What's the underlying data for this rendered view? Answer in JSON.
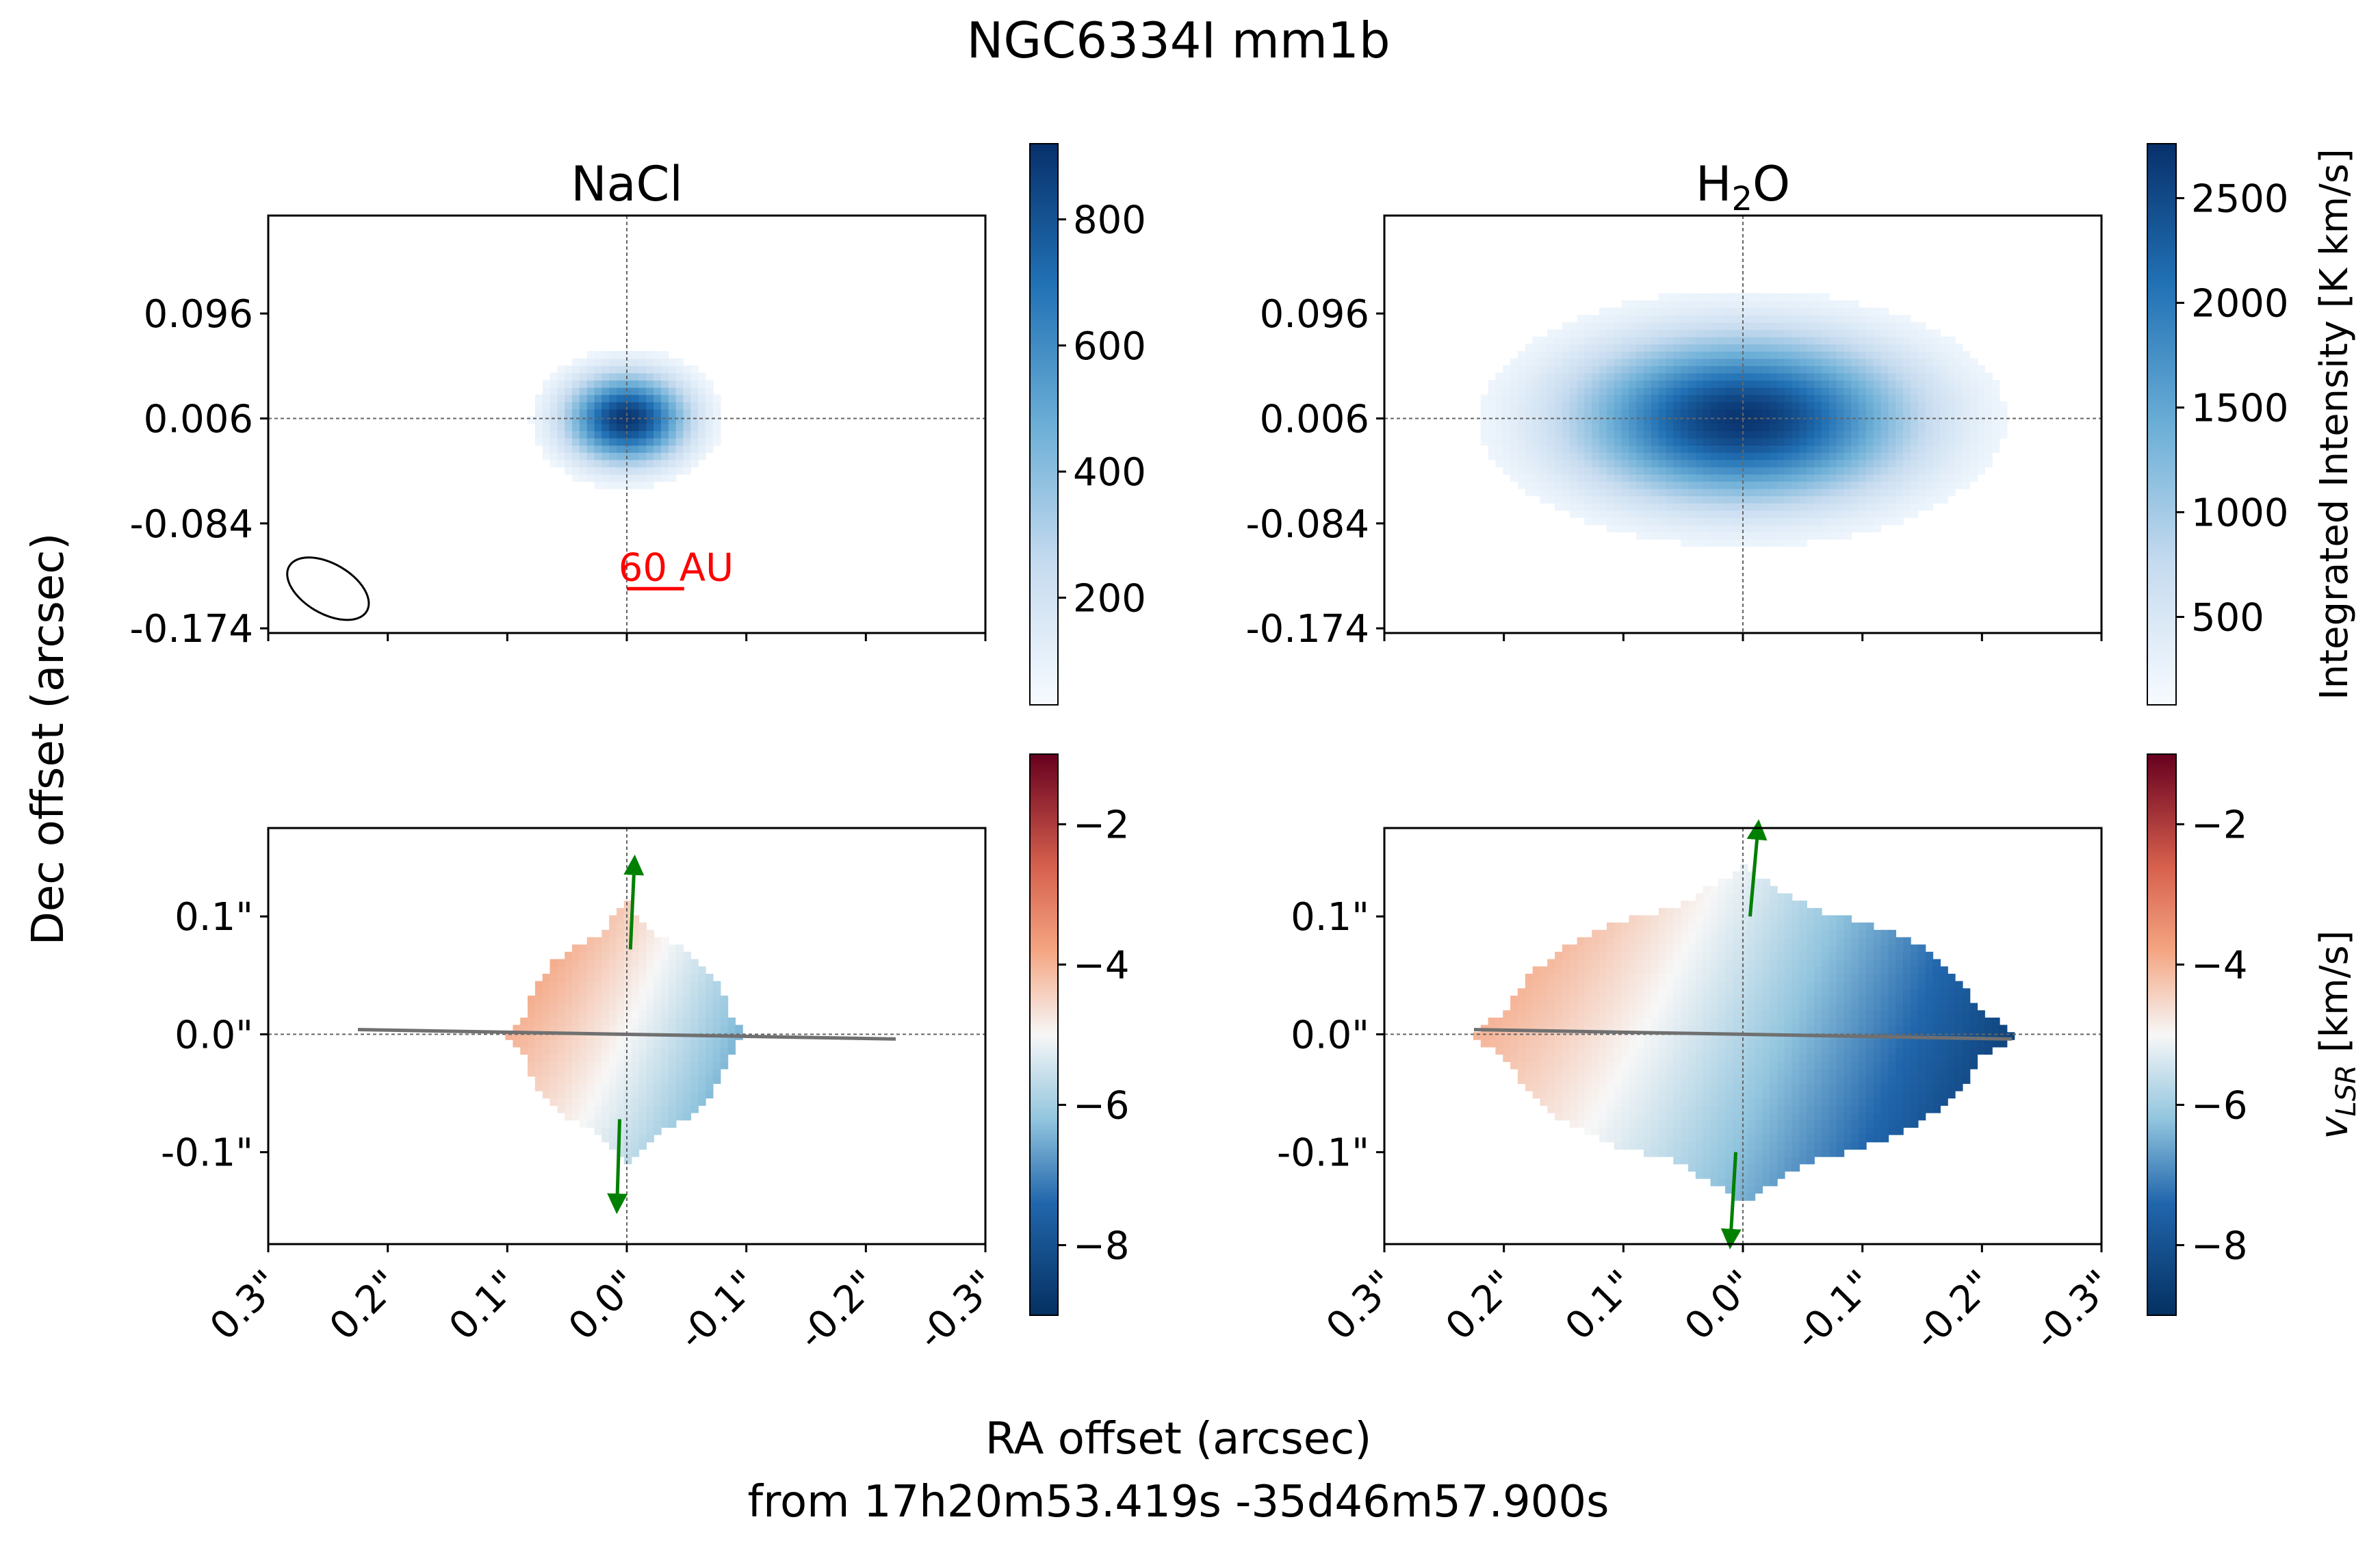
{
  "figure": {
    "suptitle": "NGC6334I mm1b",
    "xlabel_line1": "RA offset (arcsec)",
    "xlabel_line2": "from 17h20m53.419s -35d46m57.900s",
    "ylabel": "Dec offset (arcsec)",
    "colors": {
      "blue_dark": "#08306b",
      "red_dark": "#67001f",
      "arrow": "#008000",
      "pa_line": "#707070",
      "scalebar": "#ff0000"
    }
  },
  "chart_data": [
    {
      "panel": "top-left",
      "type": "heatmap",
      "title": "NaCl",
      "quantity": "integrated intensity (moment 0)",
      "colormap": "Blues",
      "clim": [
        30,
        920
      ],
      "colorbar_ticks": [
        "200",
        "400",
        "600",
        "800"
      ],
      "colorbar_tick_values": [
        200,
        400,
        600,
        800
      ],
      "ytick_labels": [
        "0.096",
        "0.006",
        "-0.084",
        "-0.174"
      ],
      "ytick_values": [
        0.096,
        0.006,
        -0.084,
        -0.174
      ],
      "xlim": [
        0.3,
        -0.3
      ],
      "ylim": [
        -0.178,
        0.18
      ],
      "emission": {
        "peak_ra": 0.0,
        "peak_dec": 0.006,
        "peak_value": 900,
        "extent_ra": 0.08,
        "extent_dec": 0.06
      },
      "beam": {
        "ra": 0.25,
        "dec": -0.14,
        "major": 0.075,
        "minor": 0.043,
        "pa_deg": 30
      },
      "scalebar": {
        "label": "60 AU",
        "ra_start": 0.0,
        "ra_end": -0.048,
        "dec": -0.14
      },
      "crosshair": {
        "ra": 0.0,
        "dec": 0.006
      }
    },
    {
      "panel": "top-right",
      "type": "heatmap",
      "title": "H",
      "title_sub": "2",
      "title_tail": "O",
      "quantity": "integrated intensity (moment 0)",
      "colormap": "Blues",
      "clim": [
        80,
        2760
      ],
      "colorbar_ticks": [
        "500",
        "1000",
        "1500",
        "2000",
        "2500"
      ],
      "colorbar_tick_values": [
        500,
        1000,
        1500,
        2000,
        2500
      ],
      "colorbar_label": "Integrated Intensity [K km/s]",
      "ytick_labels": [
        "0.096",
        "0.006",
        "-0.084",
        "-0.174"
      ],
      "ytick_values": [
        0.096,
        0.006,
        -0.084,
        -0.174
      ],
      "xlim": [
        0.3,
        -0.3
      ],
      "ylim": [
        -0.178,
        0.18
      ],
      "emission": {
        "peak_ra": 0.0,
        "peak_dec": 0.006,
        "peak_value": 2700,
        "extent_ra": 0.22,
        "extent_dec": 0.11
      },
      "crosshair": {
        "ra": 0.0,
        "dec": 0.006
      }
    },
    {
      "panel": "bottom-left",
      "type": "heatmap",
      "quantity": "velocity (moment 1)",
      "colormap": "RdBu_r",
      "clim": [
        -9,
        -1
      ],
      "colorbar_ticks": [
        "−2",
        "−4",
        "−6",
        "−8"
      ],
      "colorbar_tick_values": [
        -2,
        -4,
        -6,
        -8
      ],
      "xtick_labels": [
        "0.3\"",
        "0.2\"",
        "0.1\"",
        "0.0\"",
        "-0.1\"",
        "-0.2\"",
        "-0.3\""
      ],
      "xtick_values": [
        0.3,
        0.2,
        0.1,
        0.0,
        -0.1,
        -0.2,
        -0.3
      ],
      "ytick_labels": [
        "0.1\"",
        "0.0\"",
        "-0.1\""
      ],
      "ytick_values": [
        0.1,
        0.0,
        -0.1
      ],
      "xlim": [
        0.3,
        -0.3
      ],
      "ylim": [
        -0.178,
        0.175
      ],
      "velocity_field": {
        "extent_ra": 0.1,
        "extent_dec": 0.1,
        "v_east": -4.0,
        "v_west": -6.5
      },
      "pa_line": {
        "ra": [
          0.225,
          -0.225
        ],
        "dec": [
          0.004,
          -0.004
        ]
      },
      "arrows": [
        {
          "ra_from": -0.003,
          "dec_from": 0.072,
          "ra_to": -0.006,
          "dec_to": 0.138
        },
        {
          "ra_from": 0.006,
          "dec_from": -0.072,
          "ra_to": 0.008,
          "dec_to": -0.138
        }
      ],
      "crosshair": {
        "ra": 0.0,
        "dec": 0.0
      }
    },
    {
      "panel": "bottom-right",
      "type": "heatmap",
      "quantity": "velocity (moment 1)",
      "colormap": "RdBu_r",
      "clim": [
        -9,
        -1
      ],
      "colorbar_ticks": [
        "−2",
        "−4",
        "−6",
        "−8"
      ],
      "colorbar_tick_values": [
        -2,
        -4,
        -6,
        -8
      ],
      "colorbar_label": "v",
      "colorbar_label_sub": "LSR",
      "colorbar_label_tail": " [km/s]",
      "xtick_labels": [
        "0.3\"",
        "0.2\"",
        "0.1\"",
        "0.0\"",
        "-0.1\"",
        "-0.2\"",
        "-0.3\""
      ],
      "xtick_values": [
        0.3,
        0.2,
        0.1,
        0.0,
        -0.1,
        -0.2,
        -0.3
      ],
      "ytick_labels": [
        "0.1\"",
        "0.0\"",
        "-0.1\""
      ],
      "ytick_values": [
        0.1,
        0.0,
        -0.1
      ],
      "xlim": [
        0.3,
        -0.3
      ],
      "ylim": [
        -0.178,
        0.175
      ],
      "velocity_field": {
        "extent_ra": 0.23,
        "extent_dec": 0.128,
        "v_east": -4.0,
        "v_west": -8.5
      },
      "pa_line": {
        "ra": [
          0.225,
          -0.225
        ],
        "dec": [
          0.004,
          -0.004
        ]
      },
      "arrows": [
        {
          "ra_from": -0.006,
          "dec_from": 0.1,
          "ra_to": -0.012,
          "dec_to": 0.168
        },
        {
          "ra_from": 0.006,
          "dec_from": -0.1,
          "ra_to": 0.01,
          "dec_to": -0.168
        }
      ],
      "crosshair": {
        "ra": 0.0,
        "dec": 0.0
      }
    }
  ]
}
